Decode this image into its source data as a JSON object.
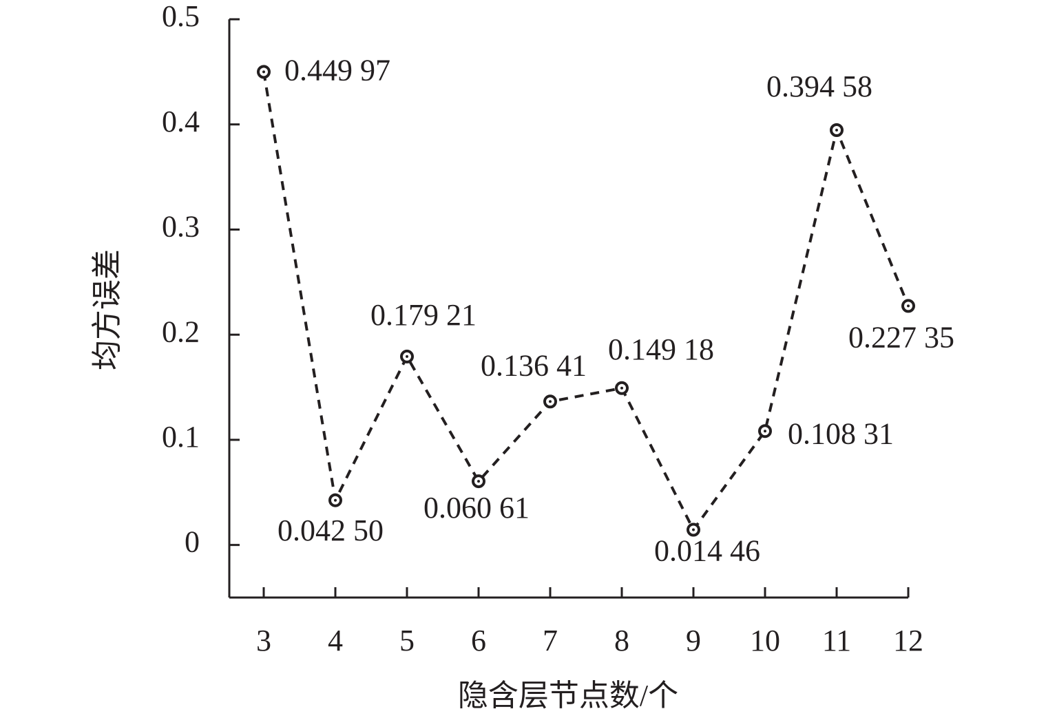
{
  "chart_data": {
    "type": "line",
    "x_label": "隐含层节点数/个",
    "y_label": "均方误差",
    "categories": [
      "3",
      "4",
      "5",
      "6",
      "7",
      "8",
      "9",
      "10",
      "11",
      "12"
    ],
    "values": [
      0.44997,
      0.0425,
      0.17921,
      0.06061,
      0.13641,
      0.14918,
      0.01446,
      0.10831,
      0.39458,
      0.22735
    ],
    "value_labels": [
      "0.449 97",
      "0.042 50",
      "0.179 21",
      "0.060 61",
      "0.136 41",
      "0.149 18",
      "0.014 46",
      "0.108 31",
      "0.394 58",
      "0.227 35"
    ],
    "color": "#231f20",
    "ylim": [
      -0.05,
      0.5
    ],
    "yticks": [
      0,
      0.1,
      0.2,
      0.3,
      0.4,
      0.5
    ]
  }
}
